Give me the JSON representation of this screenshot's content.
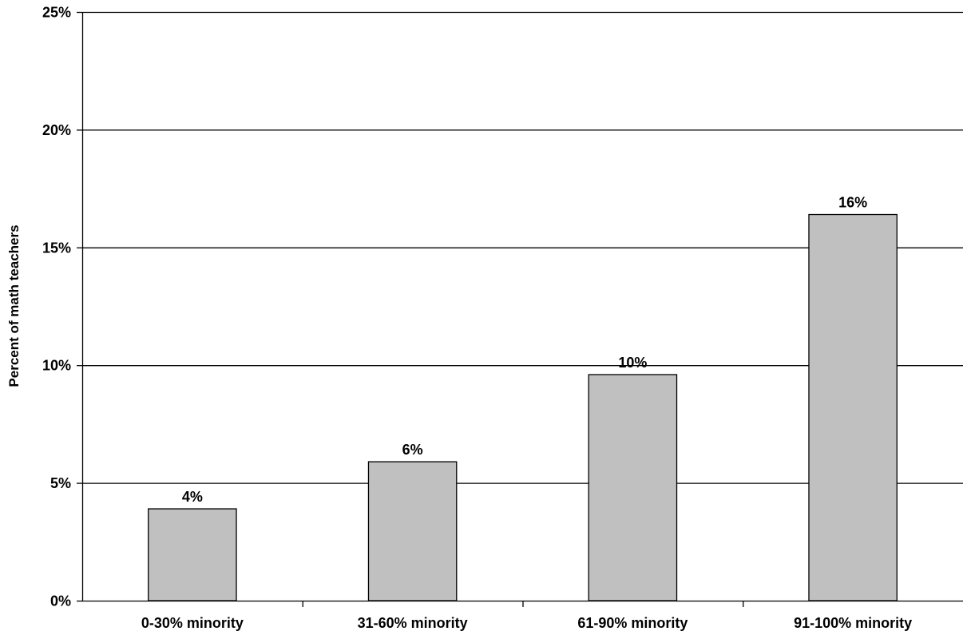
{
  "chart_data": {
    "type": "bar",
    "title": "",
    "xlabel": "",
    "ylabel": "Percent of math teachers",
    "categories": [
      "0-30% minority",
      "31-60% minority",
      "61-90% minority",
      "91-100% minority"
    ],
    "values": [
      3.9,
      5.9,
      9.6,
      16.4
    ],
    "data_labels": [
      "4%",
      "6%",
      "10%",
      "16%"
    ],
    "ylim": [
      0,
      25
    ],
    "yticks": [
      0,
      5,
      10,
      15,
      20,
      25
    ],
    "ytick_labels": [
      "0%",
      "5%",
      "10%",
      "15%",
      "20%",
      "25%"
    ],
    "grid": true,
    "legend": "none",
    "colors": {
      "bar_fill": "#c0c0c0",
      "bar_stroke": "#000000",
      "gridline": "#000000",
      "axis": "#000000"
    }
  }
}
